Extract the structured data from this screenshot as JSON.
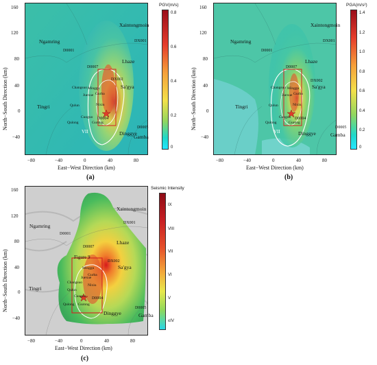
{
  "panels": [
    {
      "id": "a",
      "caption": "(a)",
      "colorbar": {
        "title": "PGV(m/s)",
        "ticks": [
          "0.8",
          "0.6",
          "0.4",
          "0.2",
          "0"
        ]
      },
      "zone_label": "VII"
    },
    {
      "id": "b",
      "caption": "(b)",
      "colorbar": {
        "title": "PGA(m/s²)",
        "ticks": [
          "1.4",
          "1.2",
          "1.0",
          "0.8",
          "0.6",
          "0.4",
          "0.2",
          "0"
        ]
      },
      "zone_label": "VII"
    },
    {
      "id": "c",
      "caption": "(c)",
      "colorbar": {
        "title": "Seismic Intensity",
        "ticks": [
          "IX",
          "VIII",
          "VII",
          "VI",
          "V",
          "≤IV"
        ]
      },
      "figure_label": "Figure 9"
    }
  ],
  "axes": {
    "xlabel": "East−West Direction (km)",
    "ylabel": "North−South Direction (km)",
    "xticks": [
      "−80",
      "−40",
      "0",
      "40",
      "80"
    ],
    "yticks": [
      "160",
      "120",
      "80",
      "40",
      "0",
      "−40"
    ]
  },
  "places": {
    "xaintongmoin": "Xaintongmoin",
    "ngamring": "Ngamring",
    "lhaze": "Lhaze",
    "sagya": "Sa'gya",
    "tingri": "Tingri",
    "dinggye": "Dinggye",
    "gamba": "Gamba"
  },
  "stations": {
    "dx001": "DX001",
    "d0001": "D0001",
    "d0007": "D0007",
    "dx002": "DX002",
    "d0004": "D0004",
    "d0005": "D0005",
    "small": [
      "Minggu",
      "Changsuo",
      "Qulun",
      "Cuoguo",
      "Gurong",
      "Qulong",
      "Gurba",
      "Nixiu",
      "Juexue"
    ]
  }
}
